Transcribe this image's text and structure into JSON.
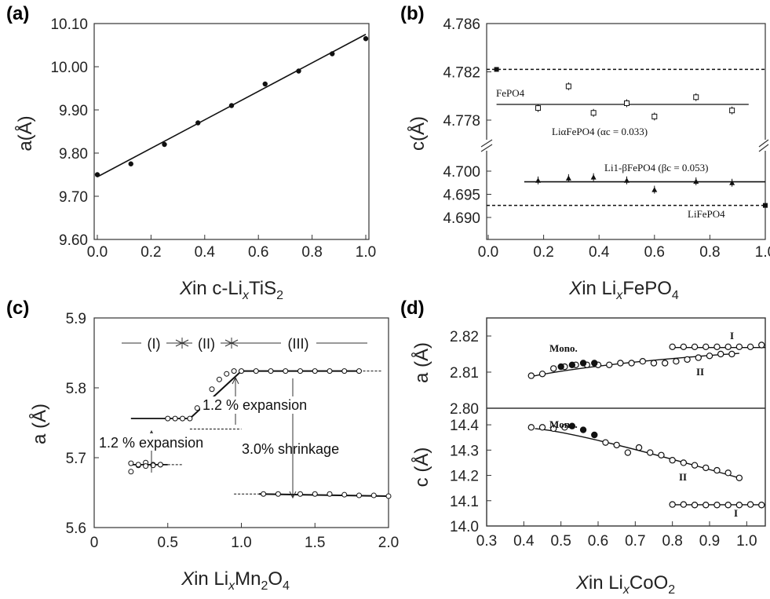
{
  "chart_data": [
    {
      "panel": "(a)",
      "type": "scatter",
      "xlabel": "Xin c-LixTiS2",
      "ylabel": "a(Å)",
      "xlim": [
        0.0,
        1.0
      ],
      "ylim": [
        9.6,
        10.1
      ],
      "xticks": [
        "0.0",
        "0.2",
        "0.4",
        "0.6",
        "0.8",
        "1.0"
      ],
      "yticks": [
        "9.60",
        "9.70",
        "9.80",
        "9.90",
        "10.00",
        "10.10"
      ],
      "series": [
        {
          "x": [
            0.0,
            0.125,
            0.25,
            0.375,
            0.5,
            0.625,
            0.75,
            0.875,
            1.0
          ],
          "y": [
            9.75,
            9.775,
            9.82,
            9.87,
            9.91,
            9.96,
            9.99,
            10.03,
            10.065
          ]
        }
      ],
      "fit_line": {
        "x": [
          0.0,
          1.0
        ],
        "y": [
          9.745,
          10.075
        ]
      }
    },
    {
      "panel": "(b)",
      "type": "scatter",
      "xlabel": "Xin LixFePO4",
      "ylabel": "c(Å)",
      "xlim": [
        0.0,
        1.0
      ],
      "xticks": [
        "0.0",
        "0.2",
        "0.4",
        "0.6",
        "0.8",
        "1.0"
      ],
      "yticks_upper": [
        "4.778",
        "4.782",
        "4.786"
      ],
      "yticks_lower": [
        "4.690",
        "4.695",
        "4.700"
      ],
      "annotations": [
        "FePO4",
        "LiαFePO4 (αc = 0.033)",
        "Li1-βFePO4 (βc = 0.053)",
        "LiFePO4"
      ],
      "reference_lines": {
        "FePO4": 4.7822,
        "LiFePO4": 4.6926
      },
      "series": [
        {
          "name": "LiαFePO4",
          "x": [
            0.18,
            0.29,
            0.38,
            0.5,
            0.6,
            0.75,
            0.88
          ],
          "y": [
            4.779,
            4.7808,
            4.7786,
            4.7794,
            4.7783,
            4.7799,
            4.7788
          ]
        },
        {
          "name": "Li1-βFePO4",
          "x": [
            0.18,
            0.29,
            0.38,
            0.5,
            0.6,
            0.75,
            0.88
          ],
          "y": [
            4.698,
            4.6985,
            4.6987,
            4.698,
            4.696,
            4.6978,
            4.6975
          ]
        }
      ],
      "end_points": {
        "x": [
          0.03,
          1.0
        ],
        "y": [
          4.7822,
          4.6926
        ]
      }
    },
    {
      "panel": "(c)",
      "type": "scatter",
      "xlabel": "Xin LixMn2O4",
      "ylabel": "a (Å)",
      "xlim": [
        0.0,
        2.0
      ],
      "ylim": [
        5.6,
        5.9
      ],
      "xticks": [
        "0",
        "0.5",
        "1.0",
        "1.5",
        "2.0"
      ],
      "yticks": [
        "5.6",
        "5.7",
        "5.8",
        "5.9"
      ],
      "regions": [
        "(I)",
        "(II)",
        "(III)"
      ],
      "annotations": [
        "1.2 % expansion",
        "1.2 % expansion",
        "3.0% shrinkage"
      ],
      "series": [
        {
          "x": [
            0.25,
            0.3,
            0.35,
            0.4,
            0.45,
            0.5,
            0.55,
            0.6,
            0.65,
            0.7,
            0.75,
            0.8,
            0.85,
            0.9,
            0.95,
            1.0,
            1.1,
            1.2,
            1.3,
            1.4,
            1.5,
            1.6,
            1.7,
            1.8,
            1.15,
            1.25,
            1.4,
            1.5,
            1.6,
            1.7,
            1.8,
            1.9,
            2.0,
            0.25,
            0.3,
            0.35,
            0.4,
            0.45
          ],
          "y": [
            5.692,
            5.689,
            5.693,
            5.69,
            5.69,
            5.756,
            5.756,
            5.756,
            5.756,
            5.771,
            5.782,
            5.798,
            5.812,
            5.82,
            5.824,
            5.824,
            5.824,
            5.824,
            5.824,
            5.824,
            5.824,
            5.824,
            5.824,
            5.824,
            5.648,
            5.648,
            5.648,
            5.648,
            5.648,
            5.647,
            5.646,
            5.646,
            5.645,
            5.68,
            5.69,
            5.688,
            5.689,
            5.69
          ]
        }
      ]
    },
    {
      "panel": "(d)",
      "type": "scatter",
      "xlabel": "Xin LixCoO2",
      "xlim": [
        0.3,
        1.05
      ],
      "xticks": [
        "0.3",
        "0.4",
        "0.5",
        "0.6",
        "0.7",
        "0.8",
        "0.9",
        "1.0"
      ],
      "top": {
        "ylabel": "a (Å)",
        "ylim": [
          2.8,
          2.825
        ],
        "yticks": [
          "2.80",
          "2.81",
          "2.82"
        ],
        "annotations": [
          "Mono.",
          "I",
          "II"
        ],
        "series": [
          {
            "name": "I",
            "x": [
              0.8,
              0.83,
              0.86,
              0.89,
              0.92,
              0.95,
              0.98,
              1.01,
              1.04
            ],
            "y": [
              2.817,
              2.817,
              2.817,
              2.817,
              2.817,
              2.817,
              2.817,
              2.817,
              2.8175
            ]
          },
          {
            "name": "II",
            "x": [
              0.42,
              0.45,
              0.48,
              0.51,
              0.54,
              0.57,
              0.6,
              0.63,
              0.66,
              0.69,
              0.72,
              0.75,
              0.78,
              0.81,
              0.84,
              0.87,
              0.9,
              0.93,
              0.96
            ],
            "y": [
              2.809,
              2.8095,
              2.811,
              2.8115,
              2.812,
              2.812,
              2.812,
              2.812,
              2.8125,
              2.8125,
              2.813,
              2.8125,
              2.8125,
              2.813,
              2.8135,
              2.814,
              2.8145,
              2.815,
              2.815
            ]
          },
          {
            "name": "Mono.",
            "x": [
              0.5,
              0.53,
              0.56,
              0.59
            ],
            "y": [
              2.8115,
              2.812,
              2.8125,
              2.8125
            ]
          }
        ]
      },
      "bottom": {
        "ylabel": "c (Å)",
        "ylim": [
          14.0,
          14.45
        ],
        "yticks": [
          "14.0",
          "14.1",
          "14.2",
          "14.3",
          "14.4"
        ],
        "annotations": [
          "Mono.",
          "II",
          "I"
        ],
        "series": [
          {
            "name": "II",
            "x": [
              0.42,
              0.45,
              0.48,
              0.51,
              0.62,
              0.65,
              0.68,
              0.71,
              0.74,
              0.77,
              0.8,
              0.83,
              0.86,
              0.89,
              0.92,
              0.95,
              0.98
            ],
            "y": [
              14.39,
              14.39,
              14.385,
              14.39,
              14.33,
              14.32,
              14.29,
              14.31,
              14.29,
              14.28,
              14.26,
              14.25,
              14.24,
              14.23,
              14.22,
              14.21,
              14.19
            ]
          },
          {
            "name": "Mono.",
            "x": [
              0.53,
              0.56,
              0.59
            ],
            "y": [
              14.395,
              14.38,
              14.36
            ]
          },
          {
            "name": "I",
            "x": [
              0.8,
              0.83,
              0.86,
              0.89,
              0.92,
              0.95,
              0.98,
              1.01,
              1.04
            ],
            "y": [
              14.085,
              14.085,
              14.083,
              14.083,
              14.083,
              14.083,
              14.083,
              14.085,
              14.083
            ]
          }
        ]
      }
    }
  ]
}
